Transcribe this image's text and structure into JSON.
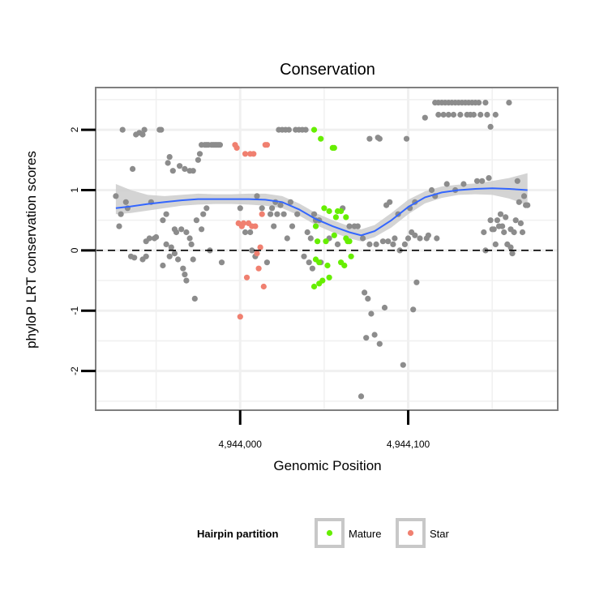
{
  "chart_data": {
    "type": "scatter",
    "title": "Conservation",
    "xlabel": "Genomic Position",
    "ylabel": "phyloP LRT conservation scores",
    "xlim": [
      4943914,
      4944189
    ],
    "ylim": [
      -2.65,
      2.7
    ],
    "x_ticks": [
      4944000,
      4944100
    ],
    "x_tick_labels": [
      "4,944,000",
      "4,944,100"
    ],
    "y_ticks": [
      -2,
      -1,
      0,
      1,
      2
    ],
    "y_tick_labels": [
      "-2",
      "-1",
      "0",
      "1",
      "2"
    ],
    "grid": true,
    "reference_line": {
      "y": 0,
      "style": "dashed"
    },
    "legend": {
      "title": "Hairpin partition",
      "position": "bottom",
      "entries": [
        {
          "name": "Mature",
          "color": "#66ee00"
        },
        {
          "name": "Star",
          "color": "#f08070"
        }
      ]
    },
    "colors": {
      "other": "#8c8c8c",
      "smooth": "#3366ff",
      "band": "#cccccc"
    },
    "series": [
      {
        "name": "Other",
        "color": "#8c8c8c",
        "points": [
          [
            4943926,
            0.9
          ],
          [
            4943928,
            0.4
          ],
          [
            4943929,
            0.6
          ],
          [
            4943930,
            2.0
          ],
          [
            4943932,
            0.8
          ],
          [
            4943933,
            0.7
          ],
          [
            4943935,
            -0.1
          ],
          [
            4943936,
            1.35
          ],
          [
            4943937,
            -0.12
          ],
          [
            4943938,
            1.92
          ],
          [
            4943940,
            1.95
          ],
          [
            4943942,
            -0.15
          ],
          [
            4943942,
            1.92
          ],
          [
            4943943,
            2.0
          ],
          [
            4943944,
            -0.1
          ],
          [
            4943944,
            0.15
          ],
          [
            4943946,
            0.2
          ],
          [
            4943947,
            0.8
          ],
          [
            4943949,
            0.2
          ],
          [
            4943950,
            0.22
          ],
          [
            4943952,
            2.0
          ],
          [
            4943953,
            2.0
          ],
          [
            4943954,
            0.5
          ],
          [
            4943954,
            -0.25
          ],
          [
            4943956,
            0.6
          ],
          [
            4943956,
            0.1
          ],
          [
            4943957,
            1.45
          ],
          [
            4943958,
            1.55
          ],
          [
            4943958,
            -0.1
          ],
          [
            4943959,
            0.05
          ],
          [
            4943960,
            1.32
          ],
          [
            4943961,
            0.35
          ],
          [
            4943961,
            -0.05
          ],
          [
            4943962,
            0.3
          ],
          [
            4943963,
            -0.15
          ],
          [
            4943964,
            1.4
          ],
          [
            4943965,
            0.35
          ],
          [
            4943966,
            -0.3
          ],
          [
            4943967,
            1.35
          ],
          [
            4943967,
            -0.4
          ],
          [
            4943968,
            0.3
          ],
          [
            4943968,
            -0.5
          ],
          [
            4943970,
            1.32
          ],
          [
            4943970,
            0.2
          ],
          [
            4943971,
            0.1
          ],
          [
            4943972,
            1.32
          ],
          [
            4943972,
            -0.15
          ],
          [
            4943973,
            -0.8
          ],
          [
            4943974,
            0.5
          ],
          [
            4943975,
            1.5
          ],
          [
            4943976,
            1.6
          ],
          [
            4943977,
            0.35
          ],
          [
            4943977,
            1.75
          ],
          [
            4943978,
            0.6
          ],
          [
            4943979,
            1.75
          ],
          [
            4943980,
            1.75
          ],
          [
            4943980,
            0.7
          ],
          [
            4943981,
            1.75
          ],
          [
            4943982,
            0.0
          ],
          [
            4943983,
            1.75
          ],
          [
            4943984,
            1.75
          ],
          [
            4943985,
            1.75
          ],
          [
            4943986,
            1.75
          ],
          [
            4943987,
            1.75
          ],
          [
            4943988,
            1.75
          ],
          [
            4943989,
            -0.2
          ],
          [
            4944000,
            0.7
          ],
          [
            4944003,
            0.3
          ],
          [
            4944006,
            0.3
          ],
          [
            4944007,
            0.0
          ],
          [
            4944009,
            -0.1
          ],
          [
            4944010,
            0.9
          ],
          [
            4944013,
            0.7
          ],
          [
            4944016,
            -0.2
          ],
          [
            4944018,
            0.6
          ],
          [
            4944019,
            0.7
          ],
          [
            4944020,
            0.4
          ],
          [
            4944021,
            0.8
          ],
          [
            4944022,
            0.6
          ],
          [
            4944023,
            2.0
          ],
          [
            4944024,
            0.75
          ],
          [
            4944025,
            2.0
          ],
          [
            4944026,
            0.6
          ],
          [
            4944027,
            2.0
          ],
          [
            4944028,
            0.2
          ],
          [
            4944029,
            2.0
          ],
          [
            4944030,
            0.8
          ],
          [
            4944031,
            0.4
          ],
          [
            4944033,
            2.0
          ],
          [
            4944034,
            0.6
          ],
          [
            4944035,
            2.0
          ],
          [
            4944037,
            2.0
          ],
          [
            4944038,
            -0.1
          ],
          [
            4944039,
            2.0
          ],
          [
            4944040,
            0.3
          ],
          [
            4944041,
            -0.2
          ],
          [
            4944042,
            0.2
          ],
          [
            4944043,
            -0.3
          ],
          [
            4944044,
            0.6
          ],
          [
            4944045,
            0.5
          ],
          [
            4944047,
            0.5
          ],
          [
            4944048,
            -0.2
          ],
          [
            4944053,
            0.2
          ],
          [
            4944058,
            0.1
          ],
          [
            4944061,
            0.7
          ],
          [
            4944065,
            0.4
          ],
          [
            4944068,
            0.4
          ],
          [
            4944070,
            0.4
          ],
          [
            4944072,
            -2.42
          ],
          [
            4944073,
            0.2
          ],
          [
            4944074,
            -0.7
          ],
          [
            4944075,
            -1.45
          ],
          [
            4944076,
            -0.8
          ],
          [
            4944077,
            0.1
          ],
          [
            4944077,
            1.85
          ],
          [
            4944078,
            -1.05
          ],
          [
            4944080,
            -1.4
          ],
          [
            4944081,
            0.1
          ],
          [
            4944082,
            1.87
          ],
          [
            4944083,
            -1.55
          ],
          [
            4944083,
            1.85
          ],
          [
            4944085,
            0.15
          ],
          [
            4944086,
            -0.95
          ],
          [
            4944087,
            0.75
          ],
          [
            4944088,
            0.15
          ],
          [
            4944089,
            0.8
          ],
          [
            4944091,
            0.1
          ],
          [
            4944092,
            0.2
          ],
          [
            4944094,
            0.6
          ],
          [
            4944095,
            0.0
          ],
          [
            4944097,
            -1.9
          ],
          [
            4944098,
            0.1
          ],
          [
            4944099,
            1.85
          ],
          [
            4944100,
            0.2
          ],
          [
            4944101,
            0.7
          ],
          [
            4944102,
            0.3
          ],
          [
            4944103,
            -0.98
          ],
          [
            4944104,
            0.25
          ],
          [
            4944104,
            0.8
          ],
          [
            4944105,
            -0.53
          ],
          [
            4944107,
            0.2
          ],
          [
            4944110,
            2.2
          ],
          [
            4944111,
            0.2
          ],
          [
            4944112,
            0.25
          ],
          [
            4944114,
            1.0
          ],
          [
            4944116,
            2.45
          ],
          [
            4944116,
            0.9
          ],
          [
            4944117,
            0.2
          ],
          [
            4944118,
            2.45
          ],
          [
            4944118,
            2.25
          ],
          [
            4944120,
            2.45
          ],
          [
            4944121,
            2.25
          ],
          [
            4944122,
            2.45
          ],
          [
            4944123,
            1.1
          ],
          [
            4944124,
            2.45
          ],
          [
            4944124,
            2.25
          ],
          [
            4944126,
            2.45
          ],
          [
            4944127,
            2.25
          ],
          [
            4944128,
            2.45
          ],
          [
            4944128,
            1.0
          ],
          [
            4944130,
            2.45
          ],
          [
            4944131,
            2.25
          ],
          [
            4944132,
            2.45
          ],
          [
            4944133,
            1.1
          ],
          [
            4944134,
            2.45
          ],
          [
            4944135,
            2.25
          ],
          [
            4944136,
            2.45
          ],
          [
            4944137,
            2.25
          ],
          [
            4944138,
            2.45
          ],
          [
            4944139,
            2.25
          ],
          [
            4944140,
            2.45
          ],
          [
            4944141,
            1.15
          ],
          [
            4944142,
            2.45
          ],
          [
            4944143,
            2.25
          ],
          [
            4944144,
            1.15
          ],
          [
            4944145,
            0.3
          ],
          [
            4944146,
            2.45
          ],
          [
            4944146,
            0.0
          ],
          [
            4944147,
            2.25
          ],
          [
            4944148,
            1.2
          ],
          [
            4944149,
            2.05
          ],
          [
            4944149,
            0.5
          ],
          [
            4944150,
            0.35
          ],
          [
            4944151,
            0.35
          ],
          [
            4944152,
            2.25
          ],
          [
            4944152,
            0.1
          ],
          [
            4944153,
            0.5
          ],
          [
            4944154,
            0.4
          ],
          [
            4944155,
            0.6
          ],
          [
            4944156,
            0.4
          ],
          [
            4944157,
            0.3
          ],
          [
            4944158,
            0.55
          ],
          [
            4944159,
            0.1
          ],
          [
            4944160,
            2.45
          ],
          [
            4944161,
            0.05
          ],
          [
            4944161,
            0.35
          ],
          [
            4944162,
            -0.05
          ],
          [
            4944163,
            0.3
          ],
          [
            4944164,
            0.5
          ],
          [
            4944165,
            1.15
          ],
          [
            4944166,
            0.8
          ],
          [
            4944167,
            0.45
          ],
          [
            4944168,
            0.3
          ],
          [
            4944169,
            0.9
          ],
          [
            4944170,
            0.75
          ],
          [
            4944171,
            0.75
          ]
        ]
      },
      {
        "name": "Mature",
        "color": "#66ee00",
        "points": [
          [
            4944044,
            2.0
          ],
          [
            4944044,
            -0.6
          ],
          [
            4944045,
            0.4
          ],
          [
            4944045,
            -0.15
          ],
          [
            4944046,
            0.15
          ],
          [
            4944047,
            -0.55
          ],
          [
            4944047,
            -0.2
          ],
          [
            4944048,
            1.85
          ],
          [
            4944049,
            -0.5
          ],
          [
            4944050,
            0.7
          ],
          [
            4944051,
            0.15
          ],
          [
            4944052,
            -0.25
          ],
          [
            4944053,
            0.65
          ],
          [
            4944053,
            -0.45
          ],
          [
            4944055,
            1.7
          ],
          [
            4944056,
            1.7
          ],
          [
            4944056,
            0.25
          ],
          [
            4944057,
            0.55
          ],
          [
            4944058,
            0.65
          ],
          [
            4944060,
            0.65
          ],
          [
            4944060,
            -0.2
          ],
          [
            4944062,
            -0.25
          ],
          [
            4944063,
            0.55
          ],
          [
            4944063,
            0.2
          ],
          [
            4944064,
            0.15
          ],
          [
            4944065,
            0.15
          ],
          [
            4944066,
            -0.1
          ]
        ]
      },
      {
        "name": "Star",
        "color": "#f08070",
        "points": [
          [
            4943997,
            1.75
          ],
          [
            4943998,
            1.7
          ],
          [
            4943999,
            0.45
          ],
          [
            4944000,
            -1.1
          ],
          [
            4944001,
            0.4
          ],
          [
            4944002,
            0.45
          ],
          [
            4944003,
            1.6
          ],
          [
            4944004,
            -0.45
          ],
          [
            4944005,
            0.45
          ],
          [
            4944006,
            1.6
          ],
          [
            4944007,
            0.4
          ],
          [
            4944008,
            1.6
          ],
          [
            4944009,
            0.4
          ],
          [
            4944010,
            -0.05
          ],
          [
            4944011,
            -0.3
          ],
          [
            4944012,
            0.05
          ],
          [
            4944013,
            0.6
          ],
          [
            4944014,
            -0.6
          ],
          [
            4944015,
            1.75
          ],
          [
            4944016,
            1.75
          ]
        ]
      }
    ],
    "smooth": {
      "name": "loess",
      "color": "#3366ff",
      "points": [
        [
          4943926,
          0.7,
          0.6,
          1.1
        ],
        [
          4943935,
          0.73,
          0.62,
          1.0
        ],
        [
          4943945,
          0.77,
          0.66,
          0.92
        ],
        [
          4943955,
          0.8,
          0.7,
          0.9
        ],
        [
          4943965,
          0.83,
          0.74,
          0.92
        ],
        [
          4943975,
          0.85,
          0.76,
          0.94
        ],
        [
          4943985,
          0.85,
          0.77,
          0.93
        ],
        [
          4943995,
          0.85,
          0.77,
          0.93
        ],
        [
          4944005,
          0.85,
          0.76,
          0.94
        ],
        [
          4944015,
          0.84,
          0.74,
          0.94
        ],
        [
          4944025,
          0.8,
          0.7,
          0.9
        ],
        [
          4944035,
          0.68,
          0.58,
          0.78
        ],
        [
          4944045,
          0.52,
          0.42,
          0.62
        ],
        [
          4944055,
          0.4,
          0.3,
          0.5
        ],
        [
          4944065,
          0.3,
          0.2,
          0.4
        ],
        [
          4944072,
          0.25,
          0.15,
          0.35
        ],
        [
          4944080,
          0.32,
          0.22,
          0.42
        ],
        [
          4944090,
          0.5,
          0.38,
          0.62
        ],
        [
          4944100,
          0.72,
          0.6,
          0.84
        ],
        [
          4944110,
          0.88,
          0.78,
          0.98
        ],
        [
          4944120,
          0.96,
          0.87,
          1.06
        ],
        [
          4944130,
          1.0,
          0.92,
          1.09
        ],
        [
          4944140,
          1.02,
          0.93,
          1.11
        ],
        [
          4944150,
          1.03,
          0.92,
          1.15
        ],
        [
          4944160,
          1.02,
          0.86,
          1.2
        ],
        [
          4944171,
          1.0,
          0.75,
          1.28
        ]
      ]
    }
  }
}
